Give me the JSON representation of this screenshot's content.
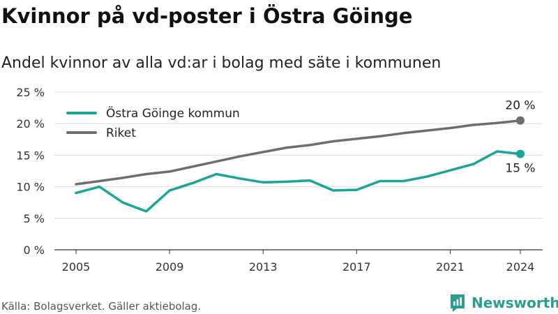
{
  "title": "Kvinnor på vd-poster i Östra Göinge",
  "subtitle": "Andel kvinnor av alla vd:ar i bolag med säte i kommunen",
  "source": "Källa: Bolagsverket. Gäller aktiebolag.",
  "brand": "Newsworthy",
  "colors": {
    "local": "#1aa599",
    "national": "#6e6e6e",
    "brand": "#2a9d8f"
  },
  "chart_data": {
    "type": "line",
    "x": [
      2005,
      2006,
      2007,
      2008,
      2009,
      2010,
      2011,
      2012,
      2013,
      2014,
      2015,
      2016,
      2017,
      2018,
      2019,
      2020,
      2021,
      2022,
      2023,
      2024
    ],
    "series": [
      {
        "name": "Östra Göinge kommun",
        "color": "#1aa599",
        "values": [
          9.0,
          10.0,
          7.5,
          6.1,
          9.4,
          10.6,
          12.0,
          11.3,
          10.7,
          10.8,
          11.0,
          9.4,
          9.5,
          10.9,
          10.9,
          11.6,
          12.6,
          13.6,
          15.6,
          15.2
        ],
        "end_label": "15 %"
      },
      {
        "name": "Riket",
        "color": "#6e6e6e",
        "values": [
          10.4,
          10.9,
          11.4,
          12.0,
          12.4,
          13.2,
          14.0,
          14.8,
          15.5,
          16.2,
          16.6,
          17.2,
          17.6,
          18.0,
          18.5,
          18.9,
          19.3,
          19.8,
          20.1,
          20.5
        ],
        "end_label": "20 %"
      }
    ],
    "x_ticks": [
      2005,
      2009,
      2013,
      2017,
      2021,
      2024
    ],
    "y_ticks": [
      0,
      5,
      10,
      15,
      20,
      25
    ],
    "y_tick_labels": [
      "0 %",
      "5 %",
      "10 %",
      "15 %",
      "20 %",
      "25 %"
    ],
    "xlim": [
      2005,
      2024
    ],
    "ylim": [
      0,
      25
    ],
    "grid": "horizontal",
    "legend_position": "top-left"
  }
}
